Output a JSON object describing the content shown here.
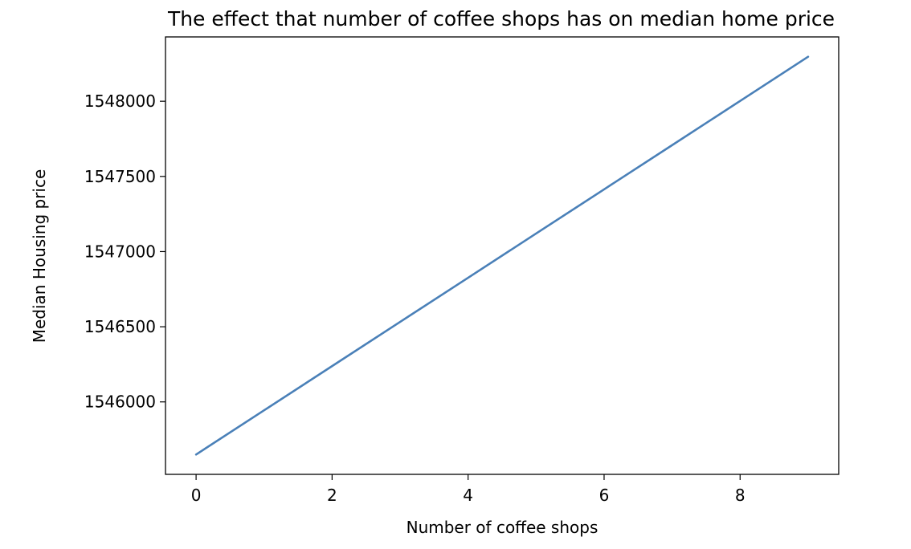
{
  "chart_data": {
    "type": "line",
    "title": "The effect that number of coffee shops has on median home price",
    "xlabel": "Number of coffee shops",
    "ylabel": "Median Housing price",
    "x": [
      0,
      1,
      2,
      3,
      4,
      5,
      6,
      7,
      8,
      9
    ],
    "series": [
      {
        "values": [
          1545650,
          1545944,
          1546238,
          1546532,
          1546826,
          1547120,
          1547414,
          1547708,
          1548002,
          1548296
        ],
        "color": "#4a80b8"
      }
    ],
    "xlim": [
      -0.45,
      9.45
    ],
    "ylim": [
      1545518,
      1548428
    ],
    "xticks": [
      0,
      2,
      4,
      6,
      8
    ],
    "yticks": [
      1546000,
      1546500,
      1547000,
      1547500,
      1548000
    ],
    "grid": false,
    "legend": "none"
  }
}
